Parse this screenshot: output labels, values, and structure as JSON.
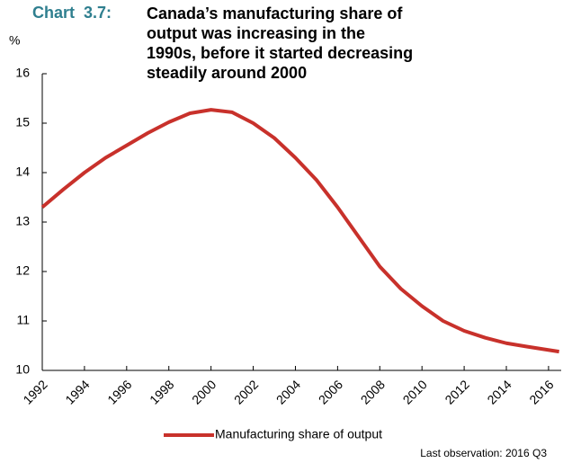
{
  "chart_data": {
    "type": "line",
    "label": "Chart  3.7:",
    "title": "Canada’s manufacturing share of output was increasing in the 1990s, before it started decreasing steadily around 2000",
    "y_unit": "%",
    "note": "Last observation: 2016 Q3",
    "x": [
      1992,
      1993,
      1994,
      1995,
      1996,
      1997,
      1998,
      1999,
      2000,
      2001,
      2002,
      2003,
      2004,
      2005,
      2006,
      2007,
      2008,
      2009,
      2010,
      2011,
      2012,
      2013,
      2014,
      2015,
      2016.5
    ],
    "series": [
      {
        "name": "Manufacturing share of output",
        "color": "#c8312b",
        "values": [
          13.3,
          13.66,
          14.0,
          14.3,
          14.55,
          14.8,
          15.02,
          15.2,
          15.27,
          15.22,
          15.0,
          14.7,
          14.3,
          13.85,
          13.3,
          12.7,
          12.1,
          11.65,
          11.3,
          11.0,
          10.8,
          10.66,
          10.55,
          10.48,
          10.38
        ]
      }
    ],
    "xlim": [
      1992,
      2016.6
    ],
    "xticks": [
      1992,
      1994,
      1996,
      1998,
      2000,
      2002,
      2004,
      2006,
      2008,
      2010,
      2012,
      2014,
      2016
    ],
    "ylim": [
      10,
      16
    ],
    "yticks": [
      10,
      11,
      12,
      13,
      14,
      15,
      16
    ]
  }
}
